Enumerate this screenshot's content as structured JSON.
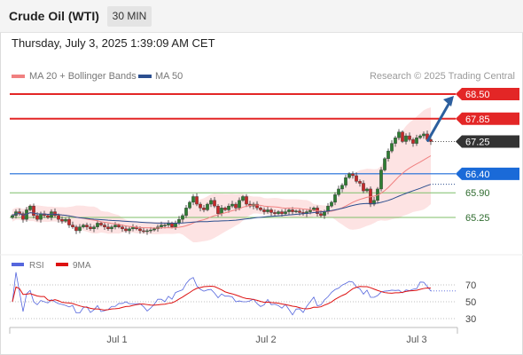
{
  "header": {
    "instrument": "Crude Oil (WTI)",
    "timeframe": "30 MIN"
  },
  "datetime": "Thursday, July 3, 2025 1:39:09 AM CET",
  "legend": {
    "ma_label": "MA 20 + Bollinger Bands",
    "ma50_label": "MA 50"
  },
  "credit": "Research © 2025 Trading Central",
  "colors": {
    "resistance": "#e32626",
    "current": "#333333",
    "pivot": "#1a6ad8",
    "support": "#7fbf6a",
    "ma20": "#f08080",
    "ma50": "#2c4f8f",
    "band": "#fde3e3",
    "arrow": "#2c5f9e",
    "up_candle": "#2e7d32",
    "down_candle": "#c62828",
    "rsi": "#5566dd",
    "rsi_ma": "#dd1111"
  },
  "chart_data": [
    {
      "type": "candlestick",
      "price_range": [
        64.7,
        69.05
      ],
      "levels": [
        {
          "label": "68.50",
          "value": 68.5,
          "kind": "resistance"
        },
        {
          "label": "67.85",
          "value": 67.85,
          "kind": "resistance"
        },
        {
          "label": "67.25",
          "value": 67.25,
          "kind": "current"
        },
        {
          "label": "66.40",
          "value": 66.4,
          "kind": "pivot"
        },
        {
          "label": "65.90",
          "value": 65.9,
          "kind": "support"
        },
        {
          "label": "65.25",
          "value": 65.25,
          "kind": "support"
        }
      ],
      "x_ticks": [
        "Jul 1",
        "Jul 2",
        "Jul 3"
      ],
      "series": [
        {
          "name": "MA 20 + Bollinger Bands"
        },
        {
          "name": "MA 50"
        }
      ],
      "close": [
        65.3,
        65.4,
        65.35,
        65.2,
        65.45,
        65.55,
        65.3,
        65.2,
        65.35,
        65.3,
        65.25,
        65.4,
        65.3,
        65.2,
        65.15,
        65.2,
        65.05,
        65.0,
        64.9,
        65.0,
        65.05,
        65.0,
        64.95,
        65.0,
        65.1,
        65.05,
        65.0,
        64.95,
        65.0,
        65.05,
        65.0,
        64.95,
        64.9,
        64.95,
        65.0,
        64.95,
        64.9,
        64.88,
        64.9,
        64.92,
        64.95,
        65.0,
        65.05,
        65.05,
        65.1,
        65.0,
        65.1,
        65.2,
        65.3,
        65.5,
        65.65,
        65.8,
        65.6,
        65.5,
        65.45,
        65.6,
        65.7,
        65.55,
        65.35,
        65.5,
        65.45,
        65.55,
        65.6,
        65.5,
        65.7,
        65.8,
        65.6,
        65.55,
        65.6,
        65.5,
        65.45,
        65.4,
        65.45,
        65.38,
        65.35,
        65.4,
        65.35,
        65.4,
        65.45,
        65.4,
        65.42,
        65.38,
        65.35,
        65.4,
        65.45,
        65.5,
        65.35,
        65.3,
        65.4,
        65.55,
        65.65,
        65.85,
        66.0,
        66.1,
        66.3,
        66.4,
        66.35,
        66.2,
        66.15,
        65.95,
        66.0,
        65.6,
        65.7,
        66.0,
        66.5,
        66.8,
        67.0,
        67.2,
        67.35,
        67.5,
        67.25,
        67.4,
        67.3,
        67.2,
        67.35,
        67.4,
        67.45,
        67.3,
        67.25
      ],
      "rsi": {
        "name": "RSI",
        "ma_name": "9MA",
        "ticks": [
          70,
          50,
          30
        ]
      }
    }
  ]
}
